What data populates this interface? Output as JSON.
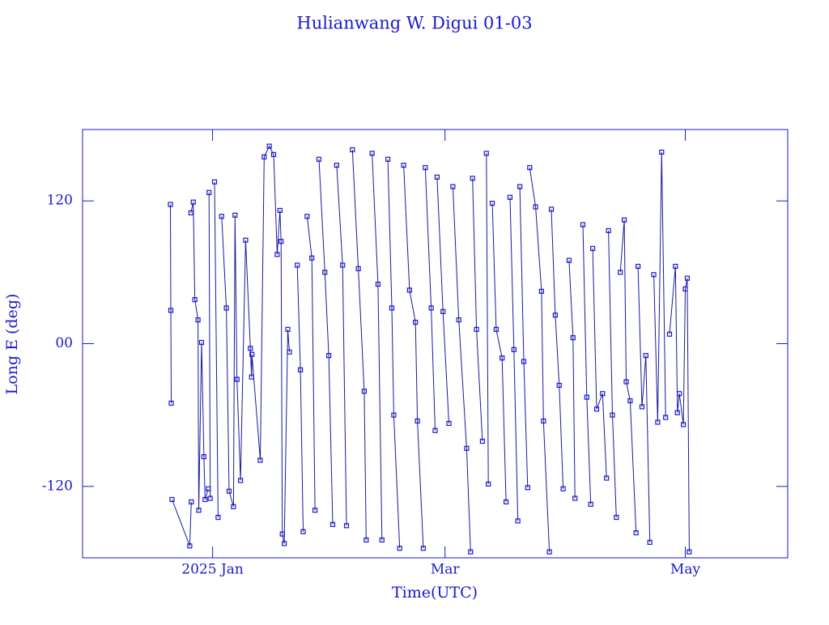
{
  "chart_data": {
    "type": "line",
    "title": "Hulianwang W. Digui 01-03",
    "xlabel": "Time(UTC)",
    "ylabel": "Long E (deg)",
    "xlim": [
      -33,
      146
    ],
    "xticks": [
      {
        "value": 0,
        "label": "2025 Jan"
      },
      {
        "value": 59,
        "label": "Mar"
      },
      {
        "value": 120,
        "label": "May"
      }
    ],
    "ylim": [
      -180,
      180
    ],
    "yticks": [
      -120,
      {
        "value": 0,
        "label": "00"
      },
      120
    ],
    "series": [
      {
        "color": "#1a1acc",
        "x": [
          -10.7,
          -10.6,
          -10.5,
          null,
          -10.3,
          -5.8,
          -5.4,
          null,
          -5.5,
          -4.9,
          -4.5,
          -3.7,
          -3.5,
          -2.8,
          -2.2,
          -1.9,
          -1.1,
          null,
          -0.9,
          -0.6,
          null,
          0.5,
          1.4,
          null,
          2.3,
          3.5,
          4.2,
          5.3,
          5.7,
          6.2,
          7.1,
          8.4,
          9.6,
          9.9,
          10.0,
          12.1,
          13.1,
          14.4,
          15.5,
          16.4,
          17.1,
          17.4,
          17.7,
          18.2,
          19.1,
          19.5,
          null,
          21.5,
          22.3,
          23.0,
          null,
          24.0,
          25.2,
          26.0,
          null,
          27.0,
          28.5,
          29.5,
          30.5,
          null,
          31.5,
          33.0,
          34.0,
          null,
          35.5,
          37.0,
          38.5,
          39.0,
          null,
          40.5,
          42.0,
          43.0,
          null,
          44.5,
          45.5,
          46.0,
          47.5,
          null,
          48.5,
          50.0,
          51.5,
          52.0,
          53.5,
          null,
          54.0,
          55.5,
          56.5,
          null,
          57.0,
          58.5,
          60.0,
          null,
          61.0,
          62.5,
          64.5,
          65.5,
          null,
          66.0,
          67.0,
          68.5,
          null,
          69.5,
          70.0,
          null,
          71.0,
          72.0,
          73.5,
          74.5,
          null,
          75.5,
          76.5,
          77.5,
          null,
          78.0,
          79.0,
          80.0,
          null,
          80.5,
          82.0,
          83.5,
          84.0,
          85.5,
          null,
          86.0,
          87.0,
          88.0,
          89.0,
          null,
          90.5,
          91.5,
          92.0,
          null,
          94.0,
          95.0,
          96.0,
          null,
          96.5,
          97.5,
          99.0,
          100.0,
          null,
          100.5,
          101.5,
          102.5,
          null,
          103.5,
          104.5,
          105.0,
          106.0,
          107.5,
          null,
          108.0,
          109.0,
          110.0,
          111.0,
          null,
          112.0,
          113.0,
          114.0,
          115.0,
          null,
          116.0,
          117.5,
          118.0,
          118.5,
          119.5,
          120.0,
          120.5,
          121.0
        ],
        "values": [
          117,
          28,
          -50,
          null,
          -131,
          -170,
          -133,
          null,
          110,
          119,
          37,
          20,
          -140,
          1,
          -95,
          -131,
          -122,
          null,
          127,
          -130,
          null,
          136,
          -146,
          null,
          107,
          30,
          -124,
          -137,
          108,
          -30,
          -115,
          87,
          -4,
          -28,
          -9,
          -98,
          157,
          166,
          159,
          75,
          112,
          86,
          -160,
          -168,
          12,
          -7,
          null,
          66,
          -22,
          -158,
          null,
          107,
          72,
          -140,
          null,
          155,
          60,
          -10,
          -152,
          null,
          150,
          66,
          -153,
          null,
          163,
          63,
          -40,
          -165,
          null,
          160,
          50,
          -165,
          null,
          155,
          30,
          -60,
          -172,
          null,
          150,
          45,
          18,
          -65,
          -172,
          null,
          148,
          30,
          -73,
          null,
          140,
          27,
          -67,
          null,
          132,
          20,
          -88,
          -175,
          null,
          139,
          12,
          -82,
          null,
          160,
          -118,
          null,
          118,
          12,
          -12,
          -133,
          null,
          123,
          -5,
          -149,
          null,
          132,
          -15,
          -121,
          null,
          148,
          115,
          44,
          -65,
          -175,
          null,
          113,
          24,
          -35,
          -122,
          null,
          70,
          5,
          -130,
          null,
          100,
          -45,
          -135,
          null,
          80,
          -55,
          -42,
          -113,
          null,
          95,
          -60,
          -146,
          null,
          60,
          104,
          -32,
          -48,
          -159,
          null,
          65,
          -53,
          -10,
          -167,
          null,
          58,
          -66,
          161,
          -62,
          null,
          8,
          65,
          -58,
          -42,
          -68,
          46,
          55,
          -175
        ]
      }
    ]
  }
}
